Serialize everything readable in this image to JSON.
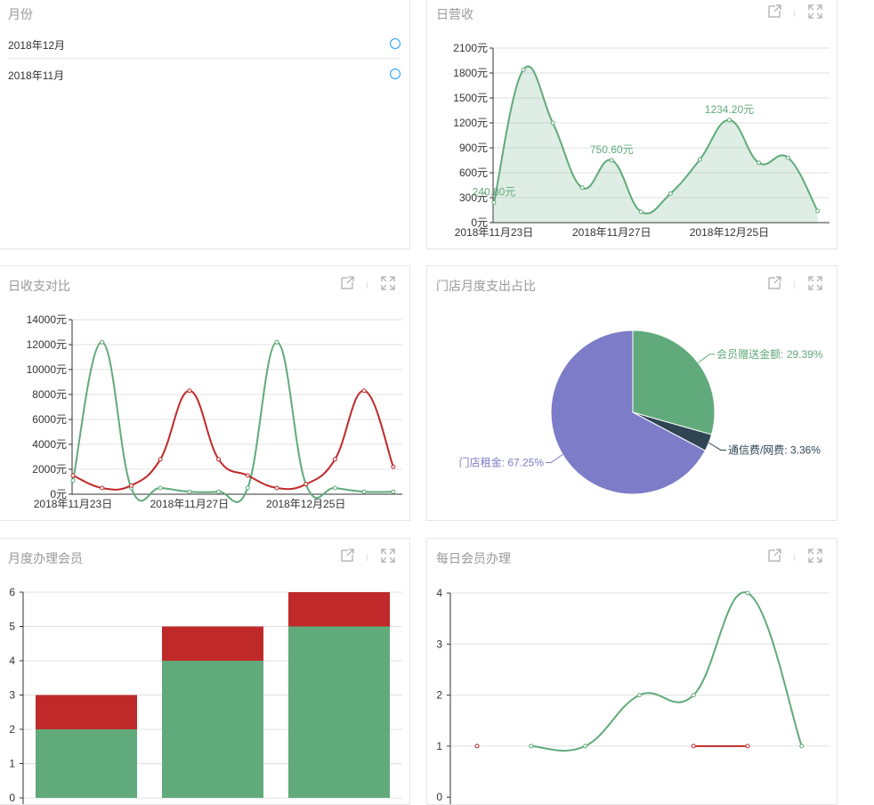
{
  "colors": {
    "green": "#61aa7b",
    "red": "#c0292a",
    "purple": "#7c7cc8",
    "navy": "#2f4554",
    "grid": "#e0e0e0",
    "axis": "#333333"
  },
  "month_panel": {
    "title": "月份",
    "items": [
      {
        "label": "2018年12月"
      },
      {
        "label": "2018年11月"
      }
    ]
  },
  "toolbar": {
    "export_icon": "export-icon",
    "fullscreen_icon": "fullscreen-icon"
  },
  "panels": {
    "daily_revenue": {
      "title": "日营收"
    },
    "daily_compare": {
      "title": "日收支对比"
    },
    "store_expense": {
      "title": "门店月度支出占比"
    },
    "monthly_members": {
      "title": "月度办理会员"
    },
    "daily_members": {
      "title": "每日会员办理"
    }
  },
  "chart_data": [
    {
      "id": "daily_revenue",
      "type": "area",
      "y_unit": "元",
      "ylim": [
        0,
        2100
      ],
      "y_ticks": [
        "0元",
        "300元",
        "600元",
        "900元",
        "1200元",
        "1500元",
        "1800元",
        "2100元"
      ],
      "x_ticks": [
        "2018年11月23日",
        "2018年11月27日",
        "2018年12月25日"
      ],
      "x_tick_index": [
        0,
        4,
        8
      ],
      "x_count": 12,
      "series": [
        {
          "values": [
            240.8,
            1840,
            1200,
            420,
            750.6,
            130,
            350,
            760,
            1234.2,
            720,
            780,
            140
          ]
        }
      ],
      "annotations": [
        {
          "index": 0,
          "label": "240.80元"
        },
        {
          "index": 4,
          "label": "750.60元"
        },
        {
          "index": 8,
          "label": "1234.20元"
        }
      ],
      "grid": true
    },
    {
      "id": "daily_compare",
      "type": "line",
      "ylim": [
        0,
        14000
      ],
      "y_ticks": [
        "0元",
        "2000元",
        "4000元",
        "6000元",
        "8000元",
        "10000元",
        "12000元",
        "14000元"
      ],
      "x_ticks": [
        "2018年11月23日",
        "2018年11月27日",
        "2018年12月25日"
      ],
      "x_tick_index": [
        0,
        4,
        8
      ],
      "x_count": 12,
      "series": [
        {
          "color": "green",
          "values": [
            1100,
            12200,
            500,
            500,
            200,
            200,
            500,
            12200,
            800,
            500,
            200,
            200
          ]
        },
        {
          "color": "red",
          "values": [
            1500,
            500,
            700,
            2800,
            8300,
            2800,
            1500,
            500,
            800,
            2800,
            8300,
            2200
          ]
        }
      ],
      "grid": true
    },
    {
      "id": "store_expense",
      "type": "pie",
      "slices": [
        {
          "name": "会员赠送金额",
          "label": "会员赠送金额: 29.39%",
          "value": 29.39,
          "color": "green"
        },
        {
          "name": "通信费/网费",
          "label": "通信费/网费: 3.36%",
          "value": 3.36,
          "color": "navy"
        },
        {
          "name": "门店租金",
          "label": "门店租金: 67.25%",
          "value": 67.25,
          "color": "purple"
        }
      ]
    },
    {
      "id": "monthly_members",
      "type": "bar",
      "stacked": true,
      "ylim": [
        0,
        6
      ],
      "y_ticks": [
        "0",
        "1",
        "2",
        "3",
        "4",
        "5",
        "6"
      ],
      "categories": [
        "",
        "",
        ""
      ],
      "series": [
        {
          "color": "green",
          "values": [
            2,
            4,
            5
          ]
        },
        {
          "color": "red",
          "values": [
            1,
            1,
            1
          ]
        }
      ],
      "grid": true
    },
    {
      "id": "daily_members",
      "type": "line",
      "ylim": [
        0,
        4
      ],
      "y_ticks": [
        "0",
        "1",
        "2",
        "3",
        "4"
      ],
      "x_count": 7,
      "series": [
        {
          "color": "green",
          "values": [
            null,
            1,
            1,
            2,
            2,
            4,
            1
          ]
        },
        {
          "color": "red",
          "values": [
            1,
            null,
            null,
            null,
            1,
            1,
            null
          ]
        }
      ],
      "grid": true
    }
  ]
}
